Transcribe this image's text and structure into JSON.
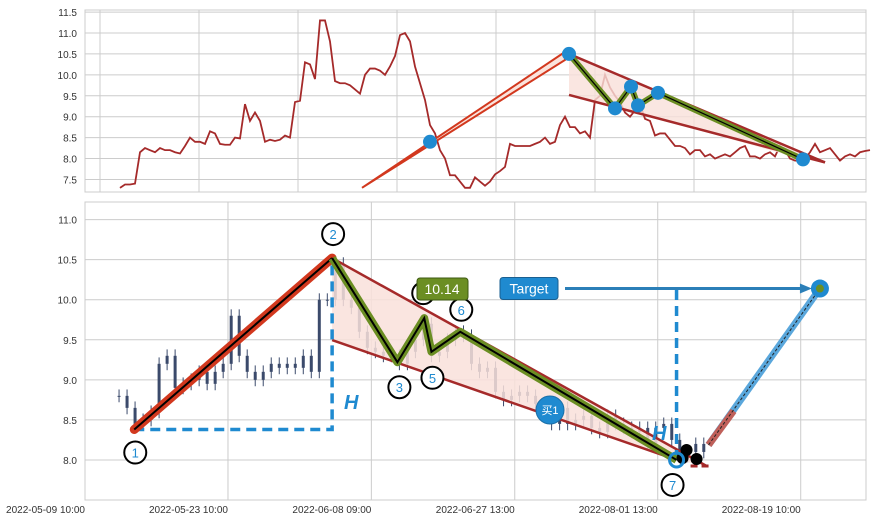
{
  "chart_data": [
    {
      "type": "line",
      "title": "",
      "xlabel": "",
      "ylabel": "",
      "ylim": [
        7.2,
        11.55
      ],
      "xlim": [
        -7,
        149.2
      ],
      "grid": true,
      "yticks": [
        "7.5",
        "8.0",
        "8.5",
        "9.0",
        "9.5",
        "10.0",
        "10.5",
        "11.0",
        "11.5"
      ],
      "xgrid": [
        -4,
        15.8,
        35.6,
        55.4,
        75.2,
        95,
        114.8,
        134.6
      ],
      "color": "#a52a2a",
      "values": [
        7.3,
        7.38,
        7.38,
        7.4,
        8.15,
        8.25,
        8.2,
        8.15,
        8.25,
        8.2,
        8.2,
        8.15,
        8.12,
        8.3,
        8.5,
        8.4,
        8.4,
        8.35,
        8.65,
        8.6,
        8.35,
        8.33,
        8.33,
        8.5,
        8.48,
        9.3,
        8.9,
        9.1,
        8.9,
        8.4,
        8.45,
        8.42,
        8.45,
        8.55,
        8.5,
        9.35,
        9.38,
        10.3,
        10.25,
        9.9,
        11.3,
        11.3,
        10.8,
        9.85,
        9.8,
        9.8,
        9.75,
        9.65,
        9.55,
        10.0,
        10.15,
        10.15,
        10.1,
        10.0,
        10.2,
        10.45,
        10.95,
        11.0,
        10.8,
        10.2,
        9.8,
        9.4,
        8.8,
        8.6,
        8.2,
        8.0,
        7.6,
        7.6,
        7.45,
        7.3,
        7.3,
        7.55,
        7.45,
        7.35,
        7.45,
        7.62,
        7.7,
        7.8,
        8.35,
        8.3,
        8.3,
        8.3,
        8.3,
        8.35,
        8.4,
        8.5,
        8.35,
        8.4,
        8.8,
        9.0,
        8.75,
        8.75,
        8.6,
        8.65,
        8.5,
        9.4,
        9.5,
        10.0,
        9.7,
        9.5,
        9.35,
        9.1,
        9.0,
        9.15,
        9.3,
        8.95,
        8.9,
        8.55,
        8.6,
        8.6,
        8.45,
        8.3,
        8.3,
        8.25,
        8.1,
        8.2,
        8.2,
        8.05,
        8.1,
        8.0,
        8.05,
        8.1,
        8.05,
        8.15,
        8.25,
        8.3,
        8.05,
        8.05,
        8.0,
        8.1,
        8.15,
        8.05,
        8.3,
        8.2,
        8.0,
        7.95,
        7.95,
        8.0,
        8.15,
        8.35,
        8.15,
        8.2,
        8.25,
        8.1,
        7.95,
        8.05,
        8.1,
        8.05,
        8.15,
        8.18,
        8.2
      ],
      "pattern_points": [
        [
          62,
          8.4
        ],
        [
          89.8,
          10.5
        ],
        [
          99,
          9.2
        ],
        [
          102.2,
          9.72
        ],
        [
          103.6,
          9.27
        ],
        [
          107.6,
          9.57
        ],
        [
          136.6,
          7.98
        ]
      ],
      "impulse_start": [
        48.4,
        7.3
      ]
    },
    {
      "type": "bar",
      "title": "",
      "xlabel": "",
      "ylabel": "",
      "ylim": [
        7.5,
        11.22
      ],
      "xlim": [
        -4.25,
        93.25
      ],
      "grid": true,
      "yticks": [
        "8.0",
        "8.5",
        "9.0",
        "9.5",
        "10.0",
        "10.5",
        "11.0"
      ],
      "xticks": [
        {
          "x": -4.25,
          "label": "2022-05-09 10:00"
        },
        {
          "x": 13.6,
          "label": "2022-05-23 10:00"
        },
        {
          "x": 31.5,
          "label": "2022-06-08 09:00"
        },
        {
          "x": 49.4,
          "label": "2022-06-27 13:00"
        },
        {
          "x": 67.25,
          "label": "2022-08-01 13:00"
        },
        {
          "x": 85.1,
          "label": "2022-08-19 10:00"
        }
      ],
      "candle_color": "#3b4a6b",
      "close": [
        8.8,
        8.65,
        8.45,
        8.5,
        8.6,
        9.2,
        9.3,
        8.9,
        8.95,
        9.0,
        9.1,
        8.95,
        9.1,
        9.2,
        9.8,
        9.3,
        9.1,
        9.0,
        9.1,
        9.2,
        9.15,
        9.2,
        9.15,
        9.3,
        9.1,
        10.0,
        10.0,
        10.45,
        10.0,
        9.9,
        9.6,
        9.4,
        9.35,
        9.3,
        9.3,
        9.2,
        9.35,
        9.5,
        9.7,
        9.3,
        9.35,
        9.5,
        9.6,
        9.55,
        9.2,
        9.1,
        9.15,
        8.85,
        8.75,
        8.8,
        8.85,
        8.8,
        8.7,
        8.6,
        8.45,
        8.65,
        8.45,
        8.5,
        8.55,
        8.4,
        8.35,
        8.55,
        8.45,
        8.4,
        8.35,
        8.4,
        8.2,
        8.4,
        8.45,
        8.25,
        8.05,
        8.1,
        8.2,
        8.1
      ],
      "pattern_points": [
        {
          "label": "1",
          "x": 1.9,
          "y": 8.38
        },
        {
          "label": "2",
          "x": 26.6,
          "y": 10.52
        },
        {
          "label": "3",
          "x": 34.75,
          "y": 9.22
        },
        {
          "label": "4",
          "x": 38.1,
          "y": 9.77
        },
        {
          "label": "5",
          "x": 39,
          "y": 9.35
        },
        {
          "label": "6",
          "x": 42.6,
          "y": 9.6
        },
        {
          "label": "7",
          "x": 69.6,
          "y": 8.0
        }
      ],
      "target": {
        "label": "Target",
        "value": "10.14",
        "x": 87.5,
        "y": 10.14
      },
      "height_label": "H",
      "buy_label": "买1",
      "colors": {
        "impulse": "#d2381e",
        "wave": "#6b8e23",
        "channel": "#a52a2a",
        "fill": "#f9e0da",
        "measure": "#1f8ad0",
        "target_box": "#1f8ad0",
        "value_box": "#6b8e23"
      }
    }
  ]
}
